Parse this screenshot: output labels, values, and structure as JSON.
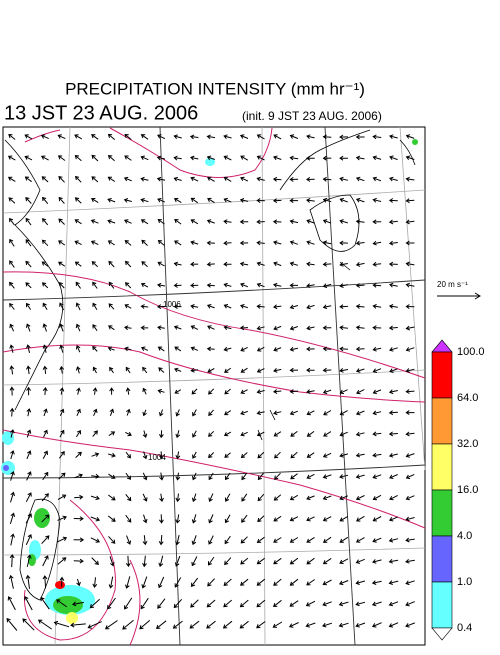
{
  "header": {
    "title": "PRECIPITATION INTENSITY (mm hr⁻¹)",
    "valid_time": "13 JST 23 AUG. 2006",
    "init_time": "(init. 9 JST 23 AUG. 2006)"
  },
  "map": {
    "contour_labels": [
      "1006",
      "1004"
    ]
  },
  "wind_scale": {
    "label": "20 m s⁻¹"
  },
  "colorbar": {
    "labels": [
      "100.0",
      "64.0",
      "32.0",
      "16.0",
      "4.0",
      "1.0",
      "0.4"
    ],
    "colors": [
      "#cc33ff",
      "#ff0000",
      "#ff9933",
      "#ffff66",
      "#33cc33",
      "#6666ff",
      "#66ffff",
      "#ffffff"
    ]
  }
}
